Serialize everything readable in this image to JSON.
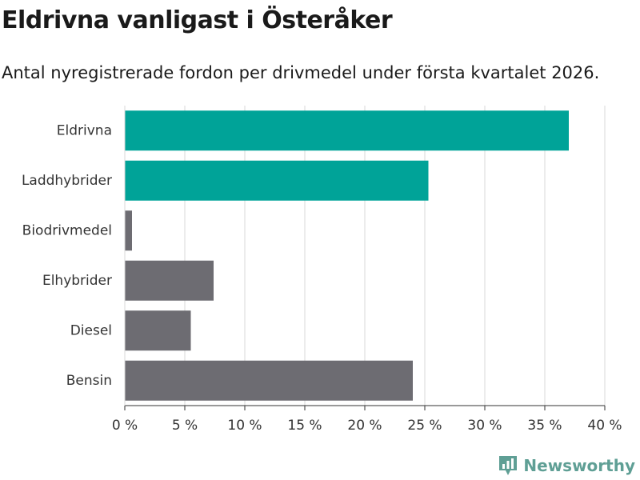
{
  "title": "Eldrivna vanligast i Österåker",
  "subtitle": "Antal nyregistrerade fordon per drivmedel under första kvartalet 2026.",
  "brand": "Newsworthy",
  "colors": {
    "highlight": "#00a398",
    "default": "#6d6c72",
    "grid": "#d9d9d9",
    "brand": "#5f9f95"
  },
  "chart_data": {
    "type": "bar",
    "orientation": "horizontal",
    "categories": [
      "Eldrivna",
      "Laddhybrider",
      "Biodrivmedel",
      "Elhybrider",
      "Diesel",
      "Bensin"
    ],
    "values": [
      37.0,
      25.3,
      0.6,
      7.4,
      5.5,
      24.0
    ],
    "highlighted": [
      true,
      true,
      false,
      false,
      false,
      false
    ],
    "xlim": [
      0,
      40
    ],
    "xticks": [
      0,
      5,
      10,
      15,
      20,
      25,
      30,
      35,
      40
    ],
    "xtick_labels": [
      "0 %",
      "5 %",
      "10 %",
      "15 %",
      "20 %",
      "25 %",
      "30 %",
      "35 %",
      "40 %"
    ],
    "xlabel": "",
    "ylabel": "",
    "grid": true,
    "title": "Eldrivna vanligast i Österåker",
    "subtitle": "Antal nyregistrerade fordon per drivmedel under första kvartalet 2026."
  }
}
